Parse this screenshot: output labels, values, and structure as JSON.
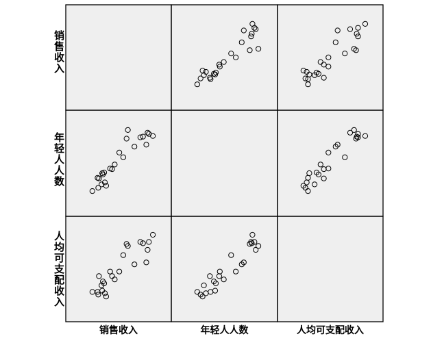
{
  "chart_data": {
    "type": "scatter",
    "variables": [
      "销售收入",
      "年轻人人数",
      "人均可支配收入"
    ],
    "points": [
      {
        "sales": 0.58,
        "youth": 0.84,
        "income": 0.85
      },
      {
        "sales": 0.6,
        "youth": 0.97,
        "income": 0.82
      },
      {
        "sales": 0.53,
        "youth": 0.56,
        "income": 0.68
      },
      {
        "sales": 0.47,
        "youth": 0.63,
        "income": 0.43
      },
      {
        "sales": 0.2,
        "youth": 0.15,
        "income": 0.22
      },
      {
        "sales": 0.22,
        "youth": 0.3,
        "income": 0.28
      },
      {
        "sales": 0.25,
        "youth": 0.18,
        "income": 0.1
      },
      {
        "sales": 0.27,
        "youth": 0.13,
        "income": 0.05
      },
      {
        "sales": 0.16,
        "youth": 0.24,
        "income": 0.36
      },
      {
        "sales": 0.15,
        "youth": 0.1,
        "income": 0.08
      },
      {
        "sales": 0.06,
        "youth": 0.05,
        "income": 0.12
      },
      {
        "sales": 0.14,
        "youth": 0.25,
        "income": 0.12
      },
      {
        "sales": 0.21,
        "youth": 0.32,
        "income": 0.14
      },
      {
        "sales": 0.24,
        "youth": 0.33,
        "income": 0.25
      },
      {
        "sales": 0.79,
        "youth": 0.86,
        "income": 0.88
      },
      {
        "sales": 0.83,
        "youth": 0.87,
        "income": 0.86
      },
      {
        "sales": 0.9,
        "youth": 0.93,
        "income": 0.76
      },
      {
        "sales": 0.92,
        "youth": 0.91,
        "income": 0.88
      },
      {
        "sales": 0.88,
        "youth": 0.75,
        "income": 0.57
      },
      {
        "sales": 0.7,
        "youth": 0.72,
        "income": 0.54
      },
      {
        "sales": 0.98,
        "youth": 0.88,
        "income": 0.99
      },
      {
        "sales": 0.4,
        "youth": 0.45,
        "income": 0.31
      },
      {
        "sales": 0.33,
        "youth": 0.39,
        "income": 0.43
      },
      {
        "sales": 0.36,
        "youth": 0.38,
        "income": 0.36
      }
    ]
  }
}
